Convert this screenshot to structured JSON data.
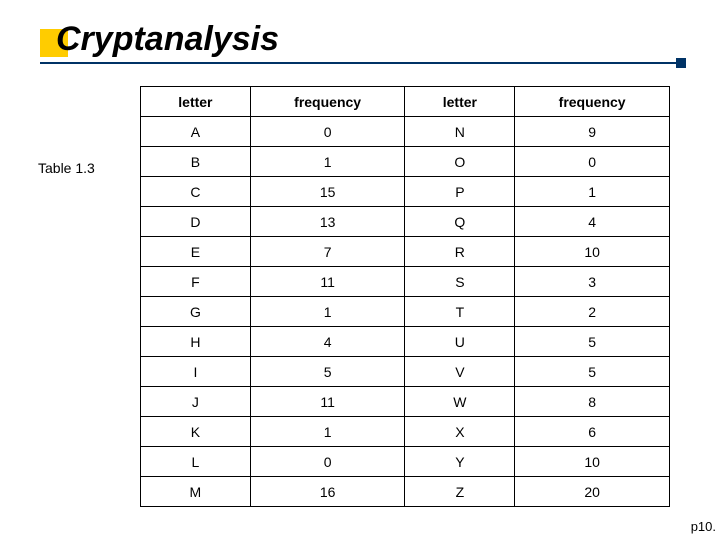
{
  "title": "Cryptanalysis",
  "caption": "Table 1.3",
  "page_label": "p10.",
  "accent_color": "#ffcc00",
  "underline_color": "#003366",
  "table": {
    "columns": [
      "letter",
      "frequency",
      "letter",
      "frequency"
    ],
    "rows": [
      [
        "A",
        "0",
        "N",
        "9"
      ],
      [
        "B",
        "1",
        "O",
        "0"
      ],
      [
        "C",
        "15",
        "P",
        "1"
      ],
      [
        "D",
        "13",
        "Q",
        "4"
      ],
      [
        "E",
        "7",
        "R",
        "10"
      ],
      [
        "F",
        "11",
        "S",
        "3"
      ],
      [
        "G",
        "1",
        "T",
        "2"
      ],
      [
        "H",
        "4",
        "U",
        "5"
      ],
      [
        "I",
        "5",
        "V",
        "5"
      ],
      [
        "J",
        "11",
        "W",
        "8"
      ],
      [
        "K",
        "1",
        "X",
        "6"
      ],
      [
        "L",
        "0",
        "Y",
        "10"
      ],
      [
        "M",
        "16",
        "Z",
        "20"
      ]
    ]
  }
}
